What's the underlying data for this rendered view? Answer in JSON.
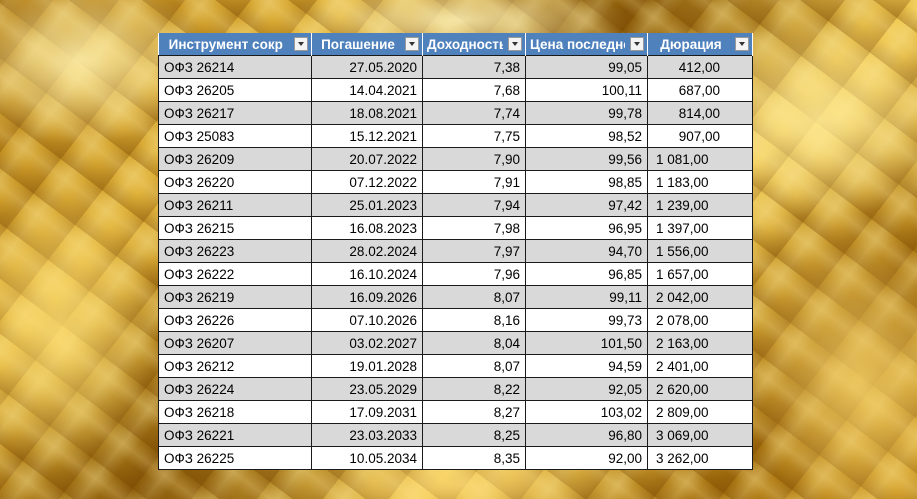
{
  "columns": [
    "Инструмент сокр",
    "Погашение",
    "Доходность",
    "Цена последней",
    "Дюрация"
  ],
  "rows": [
    [
      "ОФЗ 26214",
      "27.05.2020",
      "7,38",
      "99,05",
      "412,00"
    ],
    [
      "ОФЗ 26205",
      "14.04.2021",
      "7,68",
      "100,11",
      "687,00"
    ],
    [
      "ОФЗ 26217",
      "18.08.2021",
      "7,74",
      "99,78",
      "814,00"
    ],
    [
      "ОФЗ 25083",
      "15.12.2021",
      "7,75",
      "98,52",
      "907,00"
    ],
    [
      "ОФЗ 26209",
      "20.07.2022",
      "7,90",
      "99,56",
      "1 081,00"
    ],
    [
      "ОФЗ 26220",
      "07.12.2022",
      "7,91",
      "98,85",
      "1 183,00"
    ],
    [
      "ОФЗ 26211",
      "25.01.2023",
      "7,94",
      "97,42",
      "1 239,00"
    ],
    [
      "ОФЗ 26215",
      "16.08.2023",
      "7,98",
      "96,95",
      "1 397,00"
    ],
    [
      "ОФЗ 26223",
      "28.02.2024",
      "7,97",
      "94,70",
      "1 556,00"
    ],
    [
      "ОФЗ 26222",
      "16.10.2024",
      "7,96",
      "96,85",
      "1 657,00"
    ],
    [
      "ОФЗ 26219",
      "16.09.2026",
      "8,07",
      "99,11",
      "2 042,00"
    ],
    [
      "ОФЗ 26226",
      "07.10.2026",
      "8,16",
      "99,73",
      "2 078,00"
    ],
    [
      "ОФЗ 26207",
      "03.02.2027",
      "8,04",
      "101,50",
      "2 163,00"
    ],
    [
      "ОФЗ 26212",
      "19.01.2028",
      "8,07",
      "94,59",
      "2 401,00"
    ],
    [
      "ОФЗ 26224",
      "23.05.2029",
      "8,22",
      "92,05",
      "2 620,00"
    ],
    [
      "ОФЗ 26218",
      "17.09.2031",
      "8,27",
      "103,02",
      "2 809,00"
    ],
    [
      "ОФЗ 26221",
      "23.03.2033",
      "8,25",
      "96,80",
      "3 069,00"
    ],
    [
      "ОФЗ 26225",
      "10.05.2034",
      "8,35",
      "92,00",
      "3 262,00"
    ]
  ],
  "colors": {
    "header_bg": "#4f81bd",
    "stripe": "#d9d9d9",
    "background": "gold-foil"
  },
  "icons": {
    "filter": "filter-dropdown-icon"
  }
}
